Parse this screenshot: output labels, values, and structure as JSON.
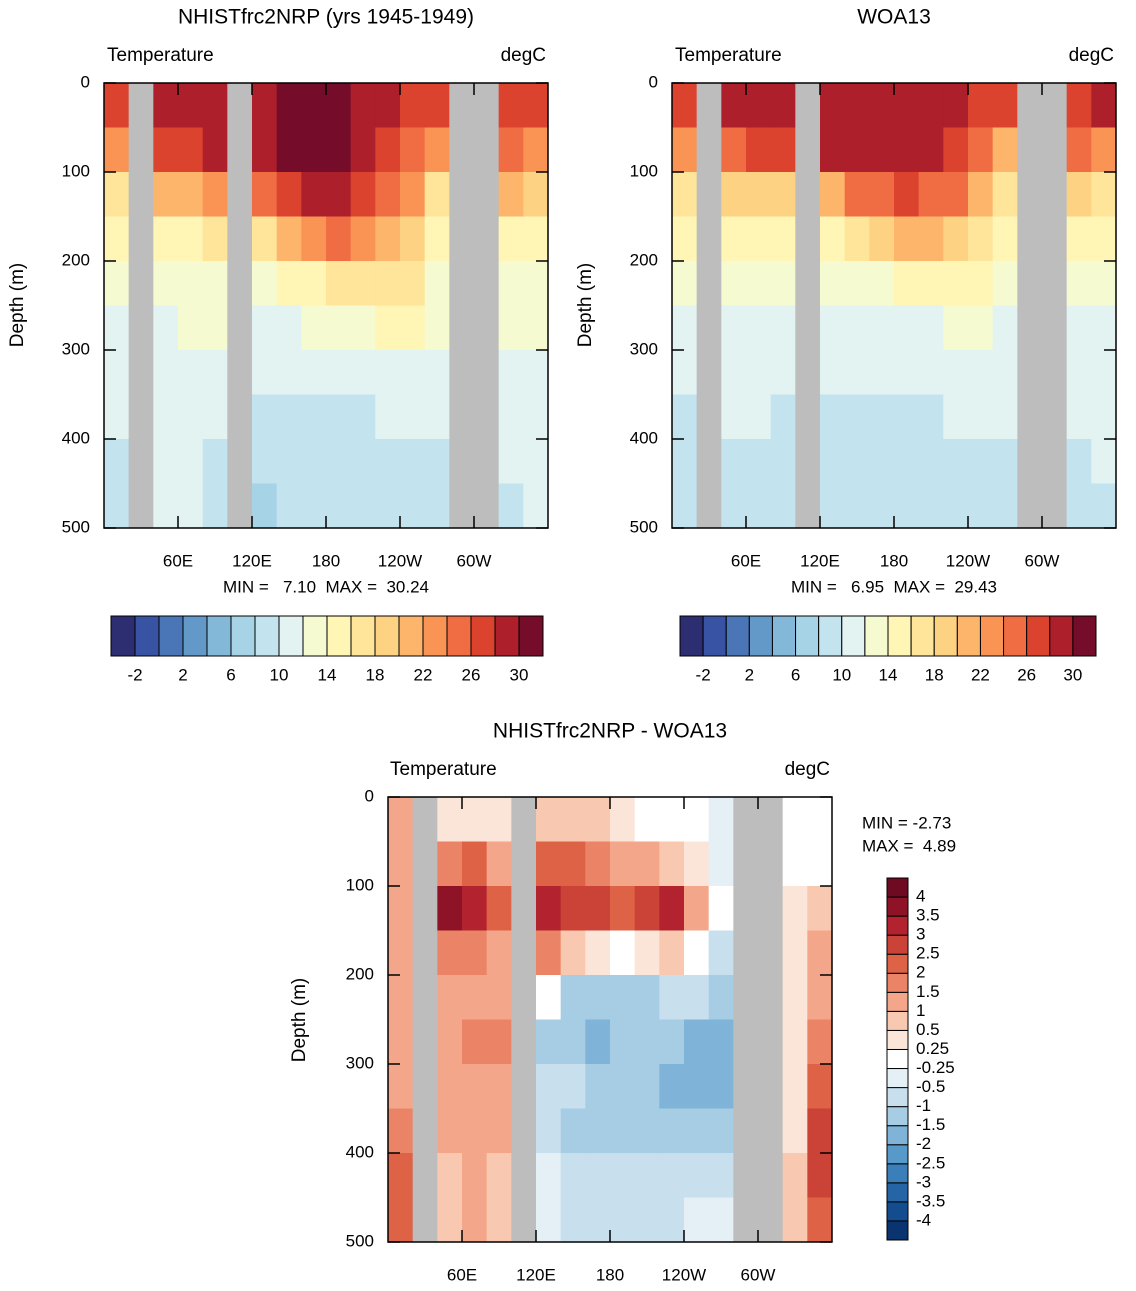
{
  "chart_data": [
    {
      "type": "contour",
      "title": "NHISTfrc2NRP (yrs 1945-1949)",
      "left_label": "Temperature",
      "right_label": "degC",
      "y_label": "Depth (m)",
      "annotations": [
        "MIN =   7.10  MAX =  30.24"
      ],
      "xlim": [
        0,
        360
      ],
      "xticks": [
        {
          "value": 60,
          "label": "60E"
        },
        {
          "value": 120,
          "label": "120E"
        },
        180,
        {
          "value": 240,
          "label": "120W"
        },
        {
          "value": 300,
          "label": "60W"
        }
      ],
      "ylim": [
        0,
        500
      ],
      "y_reversed": true,
      "yticks": [
        0,
        100,
        200,
        300,
        400,
        500
      ],
      "x": [
        10,
        30,
        50,
        70,
        90,
        110,
        130,
        150,
        170,
        190,
        210,
        230,
        250,
        270,
        290,
        310,
        330,
        350
      ],
      "y": [
        25,
        75,
        125,
        175,
        225,
        275,
        325,
        375,
        425,
        475
      ],
      "z": [
        [
          26,
          null,
          28,
          29,
          29,
          null,
          29,
          30,
          30.5,
          30.5,
          29.5,
          28,
          27,
          26,
          null,
          null,
          27,
          27
        ],
        [
          22,
          null,
          26,
          27,
          28,
          null,
          28,
          30,
          30,
          30,
          29,
          27,
          25,
          22,
          null,
          null,
          25,
          23
        ],
        [
          17,
          null,
          20,
          20,
          22,
          null,
          24,
          27,
          28,
          28,
          27,
          25,
          22,
          17,
          null,
          null,
          20,
          18
        ],
        [
          15,
          null,
          15,
          15,
          16,
          null,
          17,
          20,
          22,
          24,
          23,
          21,
          18,
          15,
          null,
          null,
          15,
          15
        ],
        [
          13,
          null,
          13,
          13,
          13,
          null,
          13,
          14,
          15,
          16,
          17,
          17,
          16,
          13,
          null,
          null,
          13,
          13
        ],
        [
          11,
          null,
          11.5,
          12,
          12,
          null,
          11,
          11,
          12,
          12,
          13,
          14,
          14,
          12,
          null,
          null,
          12,
          12
        ],
        [
          10.5,
          null,
          11,
          11,
          11,
          null,
          10,
          10,
          10,
          10,
          11,
          11,
          11,
          11,
          null,
          null,
          11,
          11
        ],
        [
          10,
          null,
          10.5,
          10.5,
          10,
          null,
          9,
          9,
          9,
          9,
          9.5,
          10,
          10,
          10,
          null,
          null,
          10,
          10.5
        ],
        [
          9.5,
          null,
          10,
          10,
          9,
          null,
          8,
          8.5,
          8.5,
          8.5,
          9,
          9,
          9,
          9.5,
          null,
          null,
          10,
          10
        ],
        [
          9,
          null,
          10,
          10,
          8.5,
          null,
          7.5,
          8,
          8,
          8,
          8,
          8.5,
          8.5,
          9,
          null,
          null,
          9.5,
          10
        ]
      ],
      "land_color": "#bdbdbd",
      "colorbar": {
        "orientation": "horizontal",
        "clim": [
          -4,
          32
        ],
        "ticks": [
          -2,
          2,
          6,
          10,
          14,
          18,
          22,
          26,
          30
        ],
        "colors": [
          "#2d2d72",
          "#3953a4",
          "#4a76b8",
          "#6399c8",
          "#84b8d8",
          "#a6d3e6",
          "#c3e3ee",
          "#e2f3f1",
          "#f6fad0",
          "#fff5b5",
          "#fee59a",
          "#fed283",
          "#fdb56b",
          "#f99455",
          "#f06d43",
          "#dc432f",
          "#ad1f2a",
          "#740c2a"
        ]
      }
    },
    {
      "type": "contour",
      "title": "WOA13",
      "left_label": "Temperature",
      "right_label": "degC",
      "y_label": "Depth (m)",
      "annotations": [
        "MIN =   6.95  MAX =  29.43"
      ],
      "xlim": [
        0,
        360
      ],
      "xticks": [
        {
          "value": 60,
          "label": "60E"
        },
        {
          "value": 120,
          "label": "120E"
        },
        180,
        {
          "value": 240,
          "label": "120W"
        },
        {
          "value": 300,
          "label": "60W"
        }
      ],
      "ylim": [
        0,
        500
      ],
      "y_reversed": true,
      "yticks": [
        0,
        100,
        200,
        300,
        400,
        500
      ],
      "x": [
        10,
        30,
        50,
        70,
        90,
        110,
        130,
        150,
        170,
        190,
        210,
        230,
        250,
        270,
        290,
        310,
        330,
        350
      ],
      "y": [
        25,
        75,
        125,
        175,
        225,
        275,
        325,
        375,
        425,
        475
      ],
      "z": [
        [
          26,
          null,
          28,
          29,
          29,
          null,
          29,
          29.5,
          29.5,
          29.5,
          29,
          28,
          27,
          26,
          null,
          null,
          27,
          28
        ],
        [
          22,
          null,
          25,
          26,
          27,
          null,
          28,
          29,
          29,
          29,
          28,
          27,
          25,
          21,
          null,
          null,
          25,
          23
        ],
        [
          16,
          null,
          18,
          18,
          19,
          null,
          21,
          24,
          25,
          26,
          25,
          24,
          21,
          16,
          null,
          null,
          19,
          17
        ],
        [
          14,
          null,
          14,
          14,
          14,
          null,
          15,
          17,
          18,
          20,
          20,
          19,
          17,
          14,
          null,
          null,
          14,
          14
        ],
        [
          12.5,
          null,
          12.5,
          12.5,
          12,
          null,
          13,
          13,
          13,
          14,
          15,
          15,
          14,
          12.5,
          null,
          null,
          12.5,
          13
        ],
        [
          11,
          null,
          11,
          11,
          11,
          null,
          11,
          11,
          11,
          11,
          11.5,
          12,
          12,
          11.5,
          null,
          null,
          11.5,
          11.5
        ],
        [
          10,
          null,
          10.5,
          10.5,
          10,
          null,
          10,
          10.5,
          10.5,
          10.5,
          10.5,
          11,
          11,
          10.5,
          null,
          null,
          11,
          11
        ],
        [
          9.5,
          null,
          10,
          10,
          9.5,
          null,
          9.5,
          9.5,
          9.5,
          9.5,
          9.5,
          10,
          10,
          10,
          null,
          null,
          10,
          10.5
        ],
        [
          9,
          null,
          9.5,
          9.5,
          9,
          null,
          9,
          9,
          9,
          9,
          9,
          9.5,
          9.5,
          9.5,
          null,
          null,
          9.5,
          10
        ],
        [
          8.5,
          null,
          9,
          9,
          8.5,
          null,
          8.5,
          8.5,
          8.5,
          8.5,
          8.5,
          8.5,
          9,
          9,
          null,
          null,
          9,
          9.5
        ]
      ],
      "land_color": "#bdbdbd",
      "colorbar": {
        "orientation": "horizontal",
        "clim": [
          -4,
          32
        ],
        "ticks": [
          -2,
          2,
          6,
          10,
          14,
          18,
          22,
          26,
          30
        ],
        "colors": [
          "#2d2d72",
          "#3953a4",
          "#4a76b8",
          "#6399c8",
          "#84b8d8",
          "#a6d3e6",
          "#c3e3ee",
          "#e2f3f1",
          "#f6fad0",
          "#fff5b5",
          "#fee59a",
          "#fed283",
          "#fdb56b",
          "#f99455",
          "#f06d43",
          "#dc432f",
          "#ad1f2a",
          "#740c2a"
        ]
      }
    },
    {
      "type": "contour",
      "title": "NHISTfrc2NRP - WOA13",
      "left_label": "Temperature",
      "right_label": "degC",
      "y_label": "Depth (m)",
      "annotations": [
        "MIN = -2.73",
        "MAX =  4.89"
      ],
      "xlim": [
        0,
        360
      ],
      "xticks": [
        {
          "value": 60,
          "label": "60E"
        },
        {
          "value": 120,
          "label": "120E"
        },
        180,
        {
          "value": 240,
          "label": "120W"
        },
        {
          "value": 300,
          "label": "60W"
        }
      ],
      "ylim": [
        0,
        500
      ],
      "y_reversed": true,
      "yticks": [
        0,
        100,
        200,
        300,
        400,
        500
      ],
      "x": [
        10,
        30,
        50,
        70,
        90,
        110,
        130,
        150,
        170,
        190,
        210,
        230,
        250,
        270,
        290,
        310,
        330,
        350
      ],
      "y": [
        25,
        75,
        125,
        175,
        225,
        275,
        325,
        375,
        425,
        475
      ],
      "z": [
        [
          1.5,
          null,
          0.3,
          0.5,
          0.5,
          null,
          1,
          1,
          0.7,
          0.5,
          0.2,
          0.1,
          -0.1,
          -0.3,
          null,
          null,
          0,
          -0.2
        ],
        [
          1.5,
          null,
          2,
          2.5,
          1.5,
          null,
          2.5,
          2.5,
          2,
          1.5,
          1.5,
          1,
          0.3,
          -0.3,
          null,
          null,
          0,
          0.2
        ],
        [
          1.2,
          null,
          4,
          3.5,
          2.5,
          null,
          3.5,
          3,
          3,
          2.5,
          3,
          3.5,
          1.5,
          -0.2,
          null,
          null,
          0.3,
          1
        ],
        [
          1.5,
          null,
          2,
          2,
          1.5,
          null,
          2,
          1,
          0.5,
          0,
          0.5,
          1,
          0.2,
          -0.5,
          null,
          null,
          0.5,
          1.2
        ],
        [
          1.5,
          null,
          1.5,
          1.5,
          1.5,
          null,
          0,
          -1,
          -1,
          -1,
          -1,
          -0.8,
          -0.7,
          -1,
          null,
          null,
          0.5,
          1.5
        ],
        [
          1.5,
          null,
          1.5,
          1.6,
          1.7,
          null,
          -1,
          -1.2,
          -1.7,
          -1.3,
          -1.2,
          -1.3,
          -1.5,
          -1.5,
          null,
          null,
          0.5,
          2
        ],
        [
          1.5,
          null,
          1.2,
          1.5,
          1.5,
          null,
          -0.5,
          -0.8,
          -1.2,
          -1.2,
          -1.2,
          -1.7,
          -1.5,
          -1.6,
          null,
          null,
          0.5,
          2.5
        ],
        [
          2,
          null,
          1.2,
          1.5,
          1.2,
          null,
          -0.5,
          -1,
          -1,
          -1.2,
          -1.1,
          -1.2,
          -1,
          -1.2,
          null,
          null,
          0.5,
          3
        ],
        [
          2.5,
          null,
          1,
          1.2,
          1,
          null,
          -0.3,
          -0.8,
          -0.8,
          -0.8,
          -0.8,
          -0.8,
          -0.6,
          -0.7,
          null,
          null,
          0.7,
          3
        ],
        [
          2.5,
          null,
          1,
          1.2,
          1,
          null,
          -0.3,
          -0.5,
          -0.7,
          -0.7,
          -0.7,
          -0.5,
          -0.3,
          -0.4,
          null,
          null,
          1,
          2.5
        ]
      ],
      "land_color": "#bdbdbd",
      "colorbar": {
        "orientation": "vertical",
        "ticks": [
          -4,
          -3.5,
          -3,
          -2.5,
          -2,
          -1.5,
          -1,
          -0.5,
          -0.25,
          0.25,
          0.5,
          1,
          1.5,
          2,
          2.5,
          3,
          3.5,
          4
        ],
        "colors": [
          "#0a3470",
          "#144d8f",
          "#2565a6",
          "#3b7fba",
          "#5799c8",
          "#7fb4d8",
          "#a7cde5",
          "#c8dfee",
          "#e4eff6",
          "#ffffff",
          "#fbe5d8",
          "#f8c9b0",
          "#f3a68a",
          "#eb8466",
          "#de6246",
          "#cb4337",
          "#b2232f",
          "#8f1326",
          "#6e0b22"
        ]
      }
    }
  ]
}
